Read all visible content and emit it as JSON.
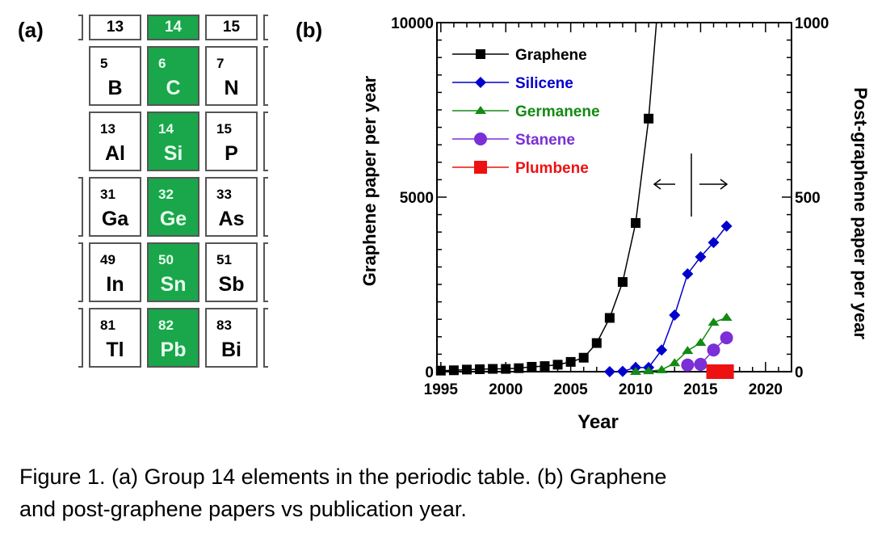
{
  "panel_a_label": "(a)",
  "panel_b_label": "(b)",
  "periodic_table": {
    "headers": [
      "13",
      "14",
      "15"
    ],
    "rows": [
      [
        {
          "n": "5",
          "s": "B"
        },
        {
          "n": "6",
          "s": "C"
        },
        {
          "n": "7",
          "s": "N"
        }
      ],
      [
        {
          "n": "13",
          "s": "Al"
        },
        {
          "n": "14",
          "s": "Si"
        },
        {
          "n": "15",
          "s": "P"
        }
      ],
      [
        {
          "n": "31",
          "s": "Ga"
        },
        {
          "n": "32",
          "s": "Ge"
        },
        {
          "n": "33",
          "s": "As"
        }
      ],
      [
        {
          "n": "49",
          "s": "In"
        },
        {
          "n": "50",
          "s": "Sn"
        },
        {
          "n": "51",
          "s": "Sb"
        }
      ],
      [
        {
          "n": "81",
          "s": "Tl"
        },
        {
          "n": "82",
          "s": "Pb"
        },
        {
          "n": "83",
          "s": "Bi"
        }
      ]
    ],
    "highlight_color": "#1aa64a"
  },
  "chart_data": {
    "type": "line",
    "xlabel": "Year",
    "ylabel": "Graphene paper per year",
    "ylabel_right": "Post-graphene paper per year",
    "xlim": [
      1994.7,
      2022
    ],
    "ylim": [
      0,
      10000
    ],
    "ylim_right": [
      0,
      1000
    ],
    "xticks": [
      1995,
      2000,
      2005,
      2010,
      2015,
      2020
    ],
    "yticks": [
      0,
      5000,
      10000
    ],
    "yticks_right": [
      0,
      500,
      1000
    ],
    "legend_position": "top-left",
    "series": [
      {
        "name": "Graphene",
        "axis": "left",
        "color": "#000000",
        "marker": "square",
        "x": [
          1995,
          1996,
          1997,
          1998,
          1999,
          2000,
          2001,
          2002,
          2003,
          2004,
          2005,
          2006,
          2007,
          2008,
          2009,
          2010,
          2011,
          2011.6
        ],
        "y": [
          30,
          40,
          60,
          70,
          80,
          80,
          100,
          140,
          160,
          200,
          280,
          400,
          820,
          1540,
          2570,
          4260,
          7250,
          10000
        ]
      },
      {
        "name": "Silicene",
        "axis": "right",
        "color": "#0000cc",
        "marker": "diamond",
        "x": [
          2008,
          2009,
          2010,
          2011,
          2012,
          2013,
          2014,
          2015,
          2016,
          2017
        ],
        "y": [
          0,
          1,
          12,
          12,
          62,
          162,
          280,
          329,
          370,
          417
        ]
      },
      {
        "name": "Germanene",
        "axis": "right",
        "color": "#138a13",
        "marker": "triangle",
        "x": [
          2010,
          2011,
          2012,
          2013,
          2014,
          2015,
          2016,
          2017
        ],
        "y": [
          0,
          2,
          5,
          25,
          60,
          83,
          141,
          155
        ]
      },
      {
        "name": "Stanene",
        "axis": "right",
        "color": "#7b2fd6",
        "marker": "circle",
        "x": [
          2014,
          2015,
          2016,
          2017
        ],
        "y": [
          19,
          21,
          62,
          97
        ]
      },
      {
        "name": "Plumbene",
        "axis": "right",
        "color": "#ee1111",
        "marker": "square",
        "x": [
          2016,
          2017
        ],
        "y": [
          0,
          0
        ]
      }
    ]
  },
  "caption_line1": "Figure 1. (a) Group 14 elements in the periodic table. (b) Graphene",
  "caption_line2": "and post-graphene papers vs publication year."
}
